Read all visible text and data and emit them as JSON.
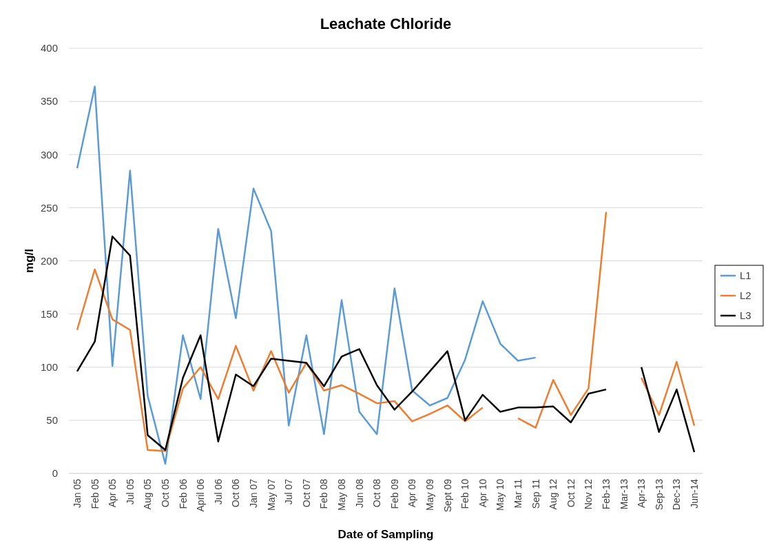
{
  "chart_data": {
    "type": "line",
    "title": "Leachate Chloride",
    "xlabel": "Date of Sampling",
    "ylabel": "mg/l",
    "categories": [
      "Jan 05",
      "Feb 05",
      "Apr 05",
      "Jul 05",
      "Aug 05",
      "Oct 05",
      "Feb 06",
      "April 06",
      "Jul 06",
      "Oct 06",
      "Jan 07",
      "May 07",
      "Jul 07",
      "Oct 07",
      "Feb 08",
      "May 08",
      "Jun 08",
      "Oct 08",
      "Feb 09",
      "Apr 09",
      "May 09",
      "Sept 09",
      "Feb 10",
      "Apr 10",
      "May 10",
      "Mar 11",
      "Sep 11",
      "Aug 12",
      "Oct 12",
      "Nov 12",
      "Feb-13",
      "Mar-13",
      "Apr-13",
      "Sep-13",
      "Dec-13",
      "Jun-14"
    ],
    "series": [
      {
        "name": "L1",
        "color": "#5b9bd5",
        "values": [
          287,
          364,
          101,
          285,
          73,
          9,
          130,
          70,
          230,
          146,
          268,
          228,
          45,
          130,
          37,
          163,
          58,
          37,
          174,
          78,
          64,
          71,
          107,
          162,
          122,
          106,
          109,
          null,
          null,
          null,
          null,
          null,
          null,
          null,
          null,
          null
        ]
      },
      {
        "name": "L2",
        "color": "#ed7d31",
        "values": [
          135,
          192,
          145,
          135,
          22,
          21,
          80,
          100,
          70,
          120,
          78,
          115,
          76,
          104,
          78,
          83,
          75,
          66,
          68,
          49,
          56,
          64,
          49,
          62,
          null,
          52,
          43,
          88,
          55,
          80,
          246,
          null,
          90,
          55,
          105,
          45
        ]
      },
      {
        "name": "L3",
        "color": "#000000",
        "values": [
          96,
          124,
          223,
          205,
          36,
          22,
          90,
          130,
          30,
          93,
          82,
          108,
          106,
          104,
          82,
          110,
          117,
          83,
          60,
          77,
          96,
          115,
          50,
          74,
          58,
          62,
          62,
          63,
          48,
          75,
          79,
          null,
          100,
          39,
          79,
          20
        ]
      }
    ],
    "ylim": [
      0,
      400
    ],
    "yticks": [
      0,
      50,
      100,
      150,
      200,
      250,
      300,
      350,
      400
    ],
    "grid": "y",
    "legend": "right",
    "marker": "none",
    "line_style": "solid"
  }
}
